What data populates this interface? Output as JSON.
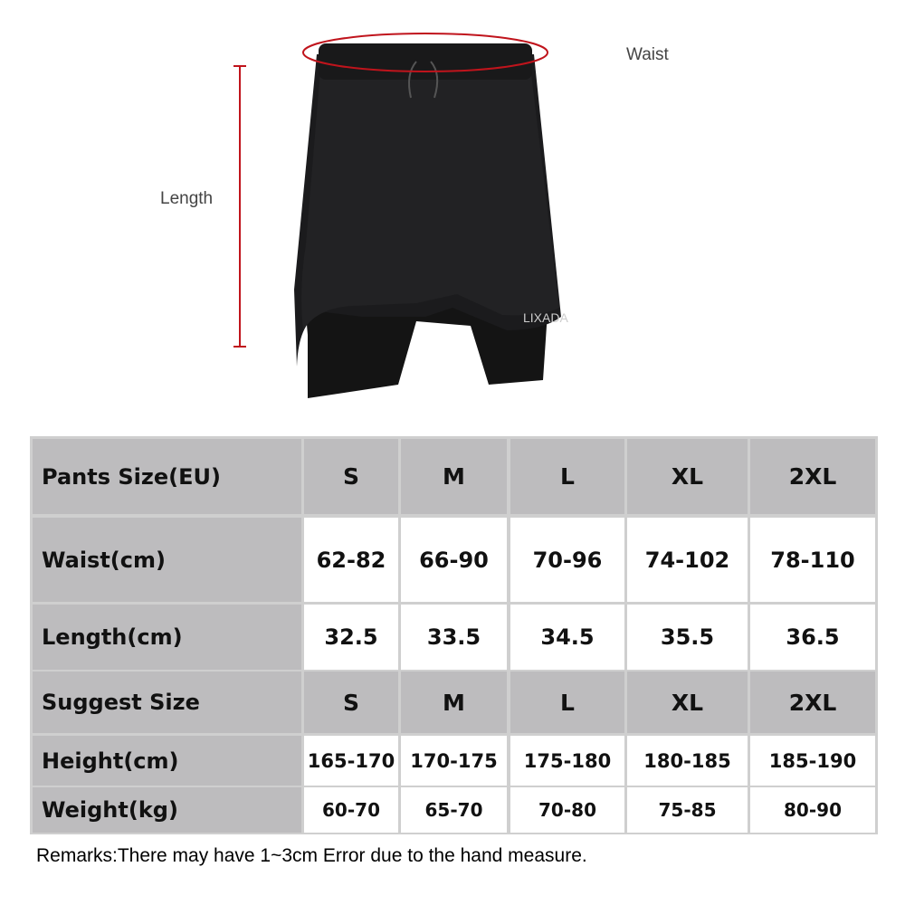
{
  "product": {
    "brand_logo": "LIXADA",
    "waist_label": "Waist",
    "length_label": "Length",
    "marker_color": "#c0141c"
  },
  "size_table": {
    "columns": [
      "S",
      "M",
      "L",
      "XL",
      "2XL"
    ],
    "rows": [
      {
        "label": "Pants Size(EU)",
        "values": [
          "S",
          "M",
          "L",
          "XL",
          "2XL"
        ],
        "style": "gray"
      },
      {
        "label": "Waist(cm)",
        "values": [
          "62-82",
          "66-90",
          "70-96",
          "74-102",
          "78-110"
        ],
        "style": "white"
      },
      {
        "label": "Length(cm)",
        "values": [
          "32.5",
          "33.5",
          "34.5",
          "35.5",
          "36.5"
        ],
        "style": "white"
      },
      {
        "label": "Suggest Size",
        "values": [
          "S",
          "M",
          "L",
          "XL",
          "2XL"
        ],
        "style": "gray"
      },
      {
        "label": "Height(cm)",
        "values": [
          "165-170",
          "170-175",
          "175-180",
          "180-185",
          "185-190"
        ],
        "style": "white"
      },
      {
        "label": "Weight(kg)",
        "values": [
          "60-70",
          "65-70",
          "70-80",
          "75-85",
          "80-90"
        ],
        "style": "white"
      }
    ]
  },
  "remarks": "Remarks:There may have 1~3cm Error due to the hand measure."
}
